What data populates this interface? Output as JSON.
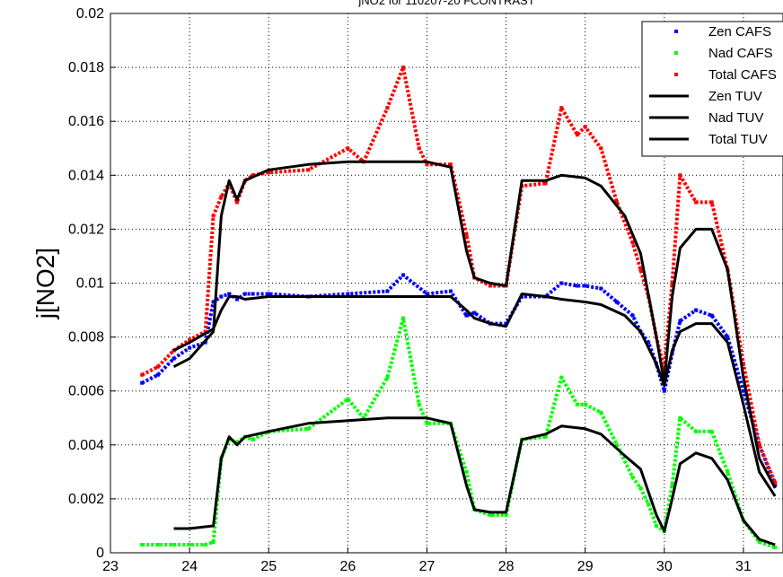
{
  "chart_data": {
    "type": "scatter",
    "title": "jNO2 for 110207-20 FCONTRAST",
    "xlabel": "",
    "ylabel": "j[NO2]",
    "xlim": [
      23,
      31.5
    ],
    "ylim": [
      0,
      0.02
    ],
    "x_ticks": [
      "23",
      "24",
      "25",
      "26",
      "27",
      "28",
      "29",
      "30",
      "31"
    ],
    "y_ticks": [
      "0",
      "0.002",
      "0.004",
      "0.006",
      "0.008",
      "0.01",
      "0.012",
      "0.014",
      "0.016",
      "0.018",
      "0.02"
    ],
    "grid": true,
    "legend_position": "top-right",
    "series": [
      {
        "name": "Zen CAFS",
        "style": "points",
        "color": "#0000ff",
        "x": [
          23.4,
          23.6,
          23.8,
          24.0,
          24.2,
          24.3,
          24.4,
          24.5,
          24.6,
          24.7,
          24.8,
          25.0,
          25.5,
          26.0,
          26.5,
          26.7,
          27.0,
          27.3,
          27.5,
          27.6,
          27.8,
          28.0,
          28.2,
          28.5,
          28.7,
          28.9,
          29.0,
          29.2,
          29.4,
          29.6,
          29.7,
          29.8,
          29.9,
          30.0,
          30.1,
          30.2,
          30.4,
          30.6,
          30.8,
          31.0,
          31.2,
          31.4
        ],
        "y": [
          0.0063,
          0.0066,
          0.0072,
          0.0076,
          0.0078,
          0.0093,
          0.0095,
          0.0096,
          0.0094,
          0.0096,
          0.0096,
          0.0096,
          0.0095,
          0.0096,
          0.0097,
          0.0103,
          0.0096,
          0.0097,
          0.0088,
          0.0089,
          0.0085,
          0.0085,
          0.0095,
          0.0095,
          0.01,
          0.0099,
          0.0099,
          0.0098,
          0.0093,
          0.0088,
          0.0082,
          0.0078,
          0.007,
          0.006,
          0.0074,
          0.0086,
          0.009,
          0.0088,
          0.008,
          0.006,
          0.004,
          0.0025
        ]
      },
      {
        "name": "Nad CAFS",
        "style": "points",
        "color": "#00ff00",
        "x": [
          23.4,
          23.6,
          23.8,
          24.0,
          24.2,
          24.3,
          24.4,
          24.5,
          24.6,
          24.7,
          24.8,
          25.0,
          25.5,
          26.0,
          26.2,
          26.5,
          26.7,
          26.9,
          27.0,
          27.3,
          27.5,
          27.6,
          27.8,
          28.0,
          28.2,
          28.5,
          28.7,
          28.9,
          29.0,
          29.2,
          29.4,
          29.6,
          29.7,
          29.8,
          29.9,
          30.0,
          30.1,
          30.2,
          30.4,
          30.6,
          30.8,
          31.0,
          31.2,
          31.4
        ],
        "y": [
          0.0003,
          0.0003,
          0.0003,
          0.0003,
          0.0003,
          0.0004,
          0.0035,
          0.0042,
          0.0041,
          0.0043,
          0.0042,
          0.0045,
          0.0046,
          0.0057,
          0.005,
          0.0065,
          0.0087,
          0.0055,
          0.0048,
          0.0048,
          0.003,
          0.0016,
          0.0014,
          0.0014,
          0.0042,
          0.0043,
          0.0065,
          0.0055,
          0.0055,
          0.0052,
          0.004,
          0.0028,
          0.0024,
          0.0018,
          0.001,
          0.0008,
          0.0025,
          0.005,
          0.0045,
          0.0045,
          0.003,
          0.0012,
          0.0004,
          0.0002
        ]
      },
      {
        "name": "Total CAFS",
        "style": "points",
        "color": "#ff0000",
        "x": [
          23.4,
          23.6,
          23.8,
          24.0,
          24.2,
          24.3,
          24.4,
          24.5,
          24.6,
          24.7,
          24.8,
          25.0,
          25.5,
          26.0,
          26.2,
          26.5,
          26.7,
          26.9,
          27.0,
          27.3,
          27.5,
          27.6,
          27.8,
          28.0,
          28.2,
          28.5,
          28.7,
          28.9,
          29.0,
          29.2,
          29.4,
          29.6,
          29.7,
          29.8,
          29.9,
          30.0,
          30.1,
          30.2,
          30.4,
          30.6,
          30.8,
          31.0,
          31.2,
          31.4
        ],
        "y": [
          0.0066,
          0.0069,
          0.0075,
          0.0079,
          0.0082,
          0.0125,
          0.0132,
          0.0137,
          0.013,
          0.0138,
          0.014,
          0.0141,
          0.0142,
          0.015,
          0.0145,
          0.0165,
          0.018,
          0.015,
          0.0144,
          0.0144,
          0.0118,
          0.0102,
          0.0099,
          0.0099,
          0.0136,
          0.0137,
          0.0165,
          0.0155,
          0.0158,
          0.015,
          0.013,
          0.0115,
          0.0105,
          0.0095,
          0.008,
          0.0068,
          0.01,
          0.014,
          0.013,
          0.013,
          0.0105,
          0.007,
          0.004,
          0.0026
        ]
      },
      {
        "name": "Zen TUV",
        "style": "line",
        "color": "#000000",
        "x": [
          23.8,
          24.0,
          24.3,
          24.4,
          24.5,
          24.6,
          24.7,
          25.0,
          25.5,
          26.0,
          26.5,
          27.0,
          27.3,
          27.5,
          27.6,
          27.8,
          28.0,
          28.2,
          28.5,
          28.7,
          29.0,
          29.2,
          29.5,
          29.7,
          29.9,
          30.0,
          30.1,
          30.2,
          30.4,
          30.6,
          30.8,
          31.0,
          31.2,
          31.4
        ],
        "y": [
          0.0075,
          0.0078,
          0.0083,
          0.009,
          0.0095,
          0.0095,
          0.0094,
          0.0095,
          0.0095,
          0.0095,
          0.0095,
          0.0095,
          0.0095,
          0.009,
          0.0087,
          0.0085,
          0.0084,
          0.0096,
          0.0095,
          0.0094,
          0.0093,
          0.0092,
          0.0088,
          0.0082,
          0.007,
          0.0062,
          0.0075,
          0.0082,
          0.0085,
          0.0085,
          0.0078,
          0.0055,
          0.003,
          0.0021
        ]
      },
      {
        "name": "Nad TUV",
        "style": "line",
        "color": "#000000",
        "x": [
          23.8,
          24.0,
          24.3,
          24.4,
          24.5,
          24.6,
          24.7,
          25.0,
          25.5,
          26.0,
          26.5,
          27.0,
          27.3,
          27.5,
          27.6,
          27.8,
          28.0,
          28.2,
          28.5,
          28.7,
          29.0,
          29.2,
          29.5,
          29.7,
          29.9,
          30.0,
          30.1,
          30.2,
          30.4,
          30.6,
          30.8,
          31.0,
          31.2,
          31.4
        ],
        "y": [
          0.0009,
          0.0009,
          0.001,
          0.0035,
          0.0043,
          0.004,
          0.0043,
          0.0045,
          0.0048,
          0.0049,
          0.005,
          0.005,
          0.0048,
          0.0025,
          0.0016,
          0.0015,
          0.0015,
          0.0042,
          0.0044,
          0.0047,
          0.0046,
          0.0044,
          0.0036,
          0.0031,
          0.0014,
          0.0008,
          0.002,
          0.0033,
          0.0037,
          0.0035,
          0.0027,
          0.0012,
          0.0005,
          0.0003
        ]
      },
      {
        "name": "Total TUV",
        "style": "line",
        "color": "#000000",
        "x": [
          23.8,
          24.0,
          24.3,
          24.4,
          24.5,
          24.6,
          24.7,
          25.0,
          25.5,
          26.0,
          26.5,
          27.0,
          27.3,
          27.5,
          27.6,
          27.8,
          28.0,
          28.2,
          28.5,
          28.7,
          29.0,
          29.2,
          29.5,
          29.7,
          29.9,
          30.0,
          30.1,
          30.2,
          30.4,
          30.6,
          30.8,
          31.0,
          31.2,
          31.4
        ],
        "y": [
          0.0069,
          0.0072,
          0.0082,
          0.0125,
          0.0138,
          0.0131,
          0.0138,
          0.0142,
          0.0144,
          0.0145,
          0.0145,
          0.0145,
          0.0143,
          0.0112,
          0.0102,
          0.01,
          0.0099,
          0.0138,
          0.0138,
          0.014,
          0.0139,
          0.0136,
          0.0125,
          0.0111,
          0.008,
          0.0063,
          0.0095,
          0.0113,
          0.012,
          0.012,
          0.0105,
          0.0065,
          0.0035,
          0.0024
        ]
      }
    ]
  }
}
